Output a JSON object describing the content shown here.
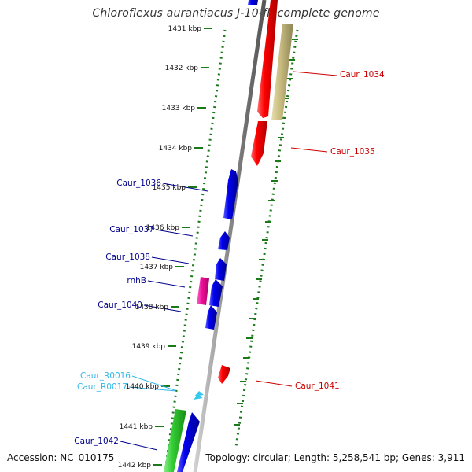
{
  "title": "Chloroflexus aurantiacus J-10-fl, complete genome",
  "footer": {
    "accession": "Accession: NC_010175",
    "summary": "Topology: circular; Length: 5,258,541 bp; Genes: 3,911"
  },
  "colors": {
    "forward_cds": "#ee0000",
    "reverse_cds": "#0000dd",
    "rna": "#33c8f0",
    "pink_feature": "#ee1199",
    "green_feature": "#33bb33",
    "olive_feature": "#c8bc80",
    "backbone": "#888888",
    "ruler": "#1a7a1a",
    "label_forward": "#cc0000",
    "label_reverse": "#00008b",
    "label_rna": "#33b8e8"
  },
  "scale": {
    "unit": "kbp",
    "ticks": [
      "1431 kbp",
      "1432 kbp",
      "1433 kbp",
      "1434 kbp",
      "1435 kbp",
      "1436 kbp",
      "1437 kbp",
      "1438 kbp",
      "1439 kbp",
      "1440 kbp",
      "1441 kbp",
      "1442 kbp"
    ]
  },
  "gene_labels": {
    "forward": [
      "Caur_1034",
      "Caur_1035",
      "Caur_1041"
    ],
    "reverse": [
      "Caur_1036",
      "Caur_1037",
      "Caur_1038",
      "rnhB",
      "Caur_1040",
      "Caur_1042"
    ],
    "rna": [
      "Caur_R0016",
      "Caur_R0017"
    ]
  }
}
